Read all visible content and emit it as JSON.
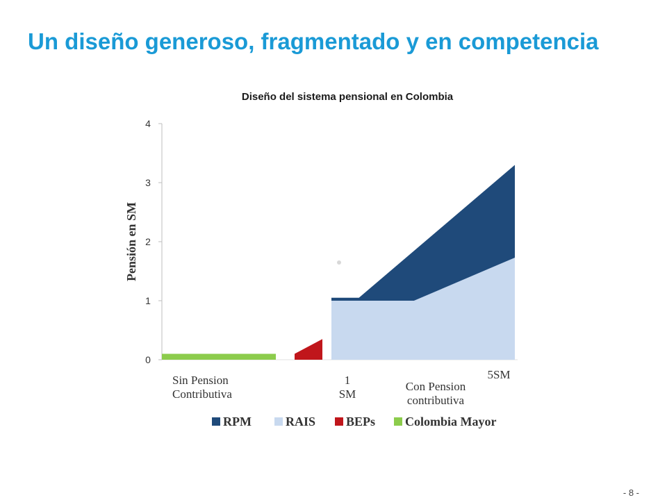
{
  "slide": {
    "title": "Un diseño generoso, fragmentado y en competencia",
    "page_number": "- 8 -"
  },
  "chart_data": {
    "type": "area",
    "title": "Diseño del sistema pensional en Colombia",
    "ylabel": "Pensión en SM",
    "xlabel": "",
    "ylim": [
      0,
      4
    ],
    "y_ticks": [
      "0",
      "1",
      "2",
      "3",
      "4"
    ],
    "grid": false,
    "legend_position": "bottom",
    "x_annotations": [
      "Sin Pension Contributiva",
      "1 SM",
      "Con Pension contributiva",
      "5SM"
    ],
    "series": [
      {
        "name": "RPM",
        "color": "#1f4a7a",
        "points": [
          [
            0.0,
            1.05
          ],
          [
            0.15,
            1.05
          ],
          [
            1.0,
            3.3
          ]
        ]
      },
      {
        "name": "RAIS",
        "color": "#c8d9ef",
        "points": [
          [
            0.0,
            1.0
          ],
          [
            0.45,
            1.0
          ],
          [
            1.0,
            1.73
          ]
        ]
      },
      {
        "name": "BEPs",
        "color": "#c0161b",
        "points": [
          [
            0.0,
            0.1
          ],
          [
            1.0,
            0.35
          ]
        ]
      },
      {
        "name": "Colombia Mayor",
        "color": "#8ccc4c",
        "points": [
          [
            0.0,
            0.1
          ],
          [
            1.0,
            0.1
          ]
        ]
      }
    ]
  }
}
